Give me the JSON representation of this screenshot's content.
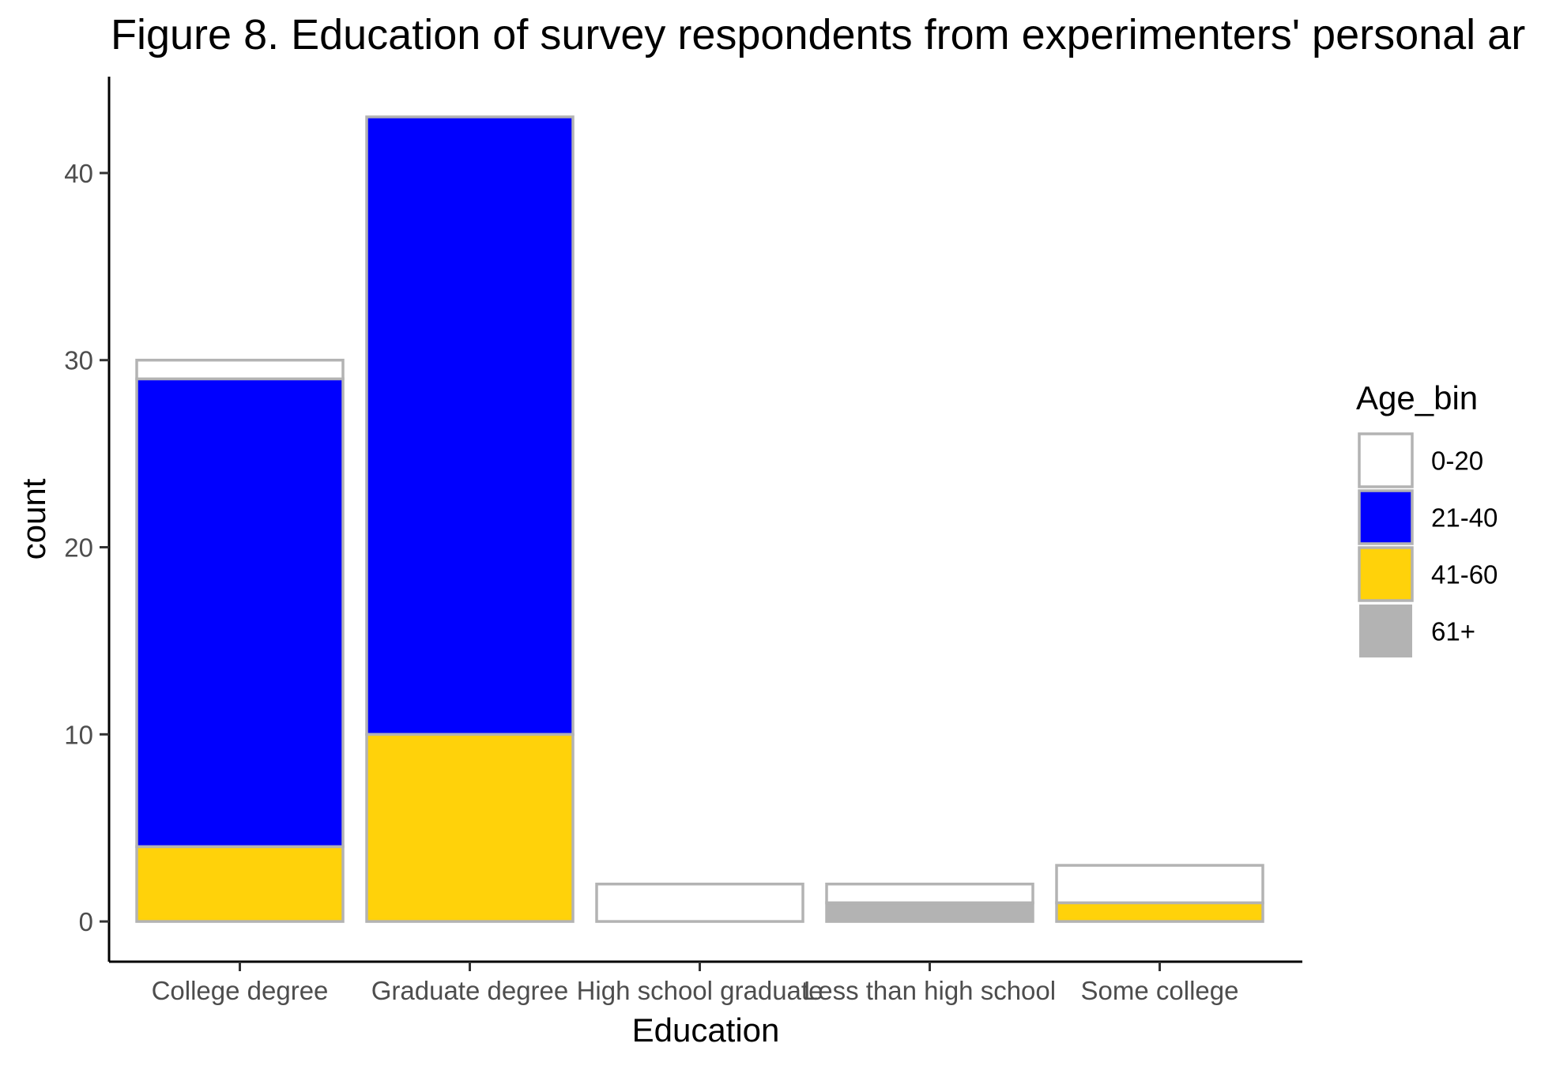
{
  "chart_data": {
    "type": "bar",
    "stacked": true,
    "title": "Figure 8. Education of survey respondents from experimenters' personal ar",
    "xlabel": "Education",
    "ylabel": "count",
    "categories": [
      "College degree",
      "Graduate degree",
      "High school graduate",
      "Less than high school",
      "Some college"
    ],
    "series": [
      {
        "name": "0-20",
        "color": "#ffffff",
        "values": [
          1,
          0,
          2,
          1,
          2
        ]
      },
      {
        "name": "21-40",
        "color": "#0000ff",
        "values": [
          25,
          33,
          0,
          0,
          0
        ]
      },
      {
        "name": "41-60",
        "color": "#ffd20a",
        "values": [
          4,
          10,
          0,
          0,
          1
        ]
      },
      {
        "name": "61+",
        "color": "#b3b3b3",
        "values": [
          0,
          0,
          0,
          1,
          0
        ]
      }
    ],
    "yticks": [
      0,
      10,
      20,
      30,
      40
    ],
    "ylim": [
      -2.15,
      45.15
    ],
    "bar_outline_color": "#b3b3b3",
    "grid": false,
    "legend": {
      "title": "Age_bin",
      "position": "right"
    }
  }
}
